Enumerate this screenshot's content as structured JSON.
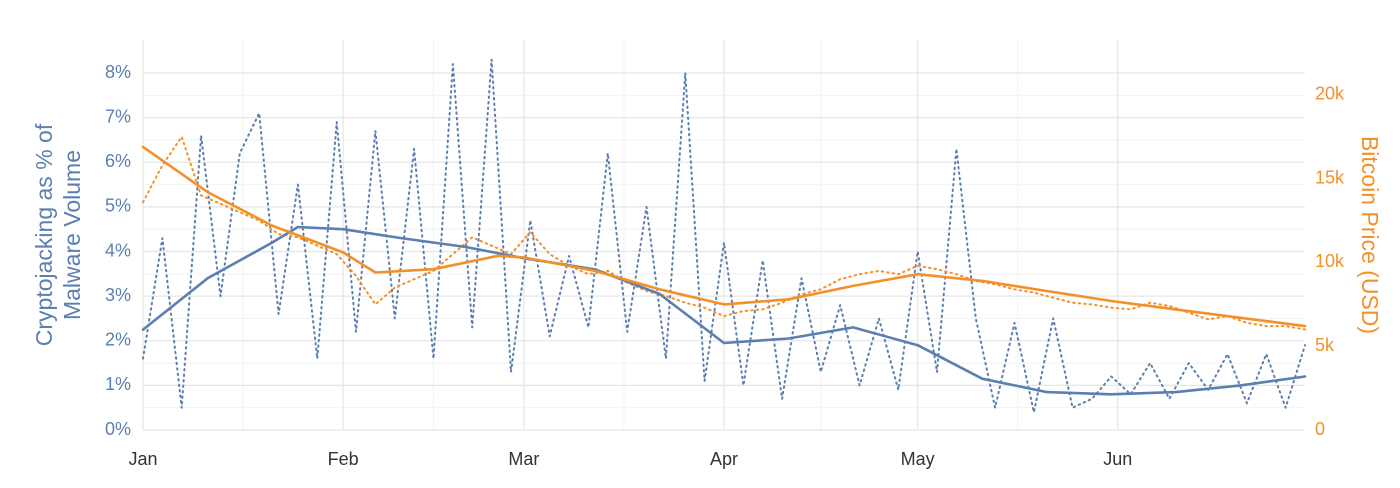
{
  "chart_data": {
    "type": "line",
    "ylabel": [
      "Cryptojacking as % of",
      "Malware Volume"
    ],
    "y2label": "Bitcoin Price (USD)",
    "xlim": [
      0,
      180
    ],
    "xticks": [
      {
        "value": 0,
        "label": "Jan"
      },
      {
        "value": 31,
        "label": "Feb"
      },
      {
        "value": 59,
        "label": "Mar"
      },
      {
        "value": 90,
        "label": "Apr"
      },
      {
        "value": 120,
        "label": "May"
      },
      {
        "value": 151,
        "label": "Jun"
      }
    ],
    "ylim": [
      0,
      8.74
    ],
    "yticks": [
      {
        "value": 0,
        "label": "0%"
      },
      {
        "value": 1,
        "label": "1%"
      },
      {
        "value": 2,
        "label": "2%"
      },
      {
        "value": 3,
        "label": "3%"
      },
      {
        "value": 4,
        "label": "4%"
      },
      {
        "value": 5,
        "label": "5%"
      },
      {
        "value": 6,
        "label": "6%"
      },
      {
        "value": 7,
        "label": "7%"
      },
      {
        "value": 8,
        "label": "8%"
      }
    ],
    "y2lim": [
      0,
      23280
    ],
    "y2ticks": [
      0,
      {
        "value": 5000,
        "label": "5k"
      },
      {
        "value": 10000,
        "label": "10k"
      },
      {
        "value": 15000,
        "label": "15k"
      },
      {
        "value": 20000,
        "label": "20k"
      }
    ],
    "ycolor": "#5b7fb0",
    "y2color": "#f4902a",
    "grid": true,
    "series": [
      {
        "color": "#5b7fb0",
        "style": "dotted",
        "x": [
          0,
          3,
          6,
          9,
          12,
          15,
          18,
          21,
          24,
          27,
          30,
          33,
          36,
          39,
          42,
          45,
          48,
          51,
          54,
          57,
          60,
          63,
          66,
          69,
          72,
          75,
          78,
          81,
          84,
          87,
          90,
          93,
          96,
          99,
          102,
          105,
          108,
          111,
          114,
          117,
          120,
          123,
          126,
          129,
          132,
          135,
          138,
          141,
          144,
          147,
          150,
          153,
          156,
          159,
          162,
          165,
          168,
          171,
          174,
          177,
          180
        ],
        "values": [
          1.6,
          4.3,
          0.5,
          6.6,
          3.0,
          6.2,
          7.1,
          2.6,
          5.5,
          1.6,
          6.9,
          2.2,
          6.7,
          2.5,
          6.3,
          1.6,
          8.2,
          2.3,
          8.3,
          1.3,
          4.7,
          2.1,
          3.9,
          2.3,
          6.2,
          2.2,
          5.0,
          1.6,
          8.0,
          1.1,
          4.2,
          1.0,
          3.8,
          0.7,
          3.4,
          1.3,
          2.8,
          1.0,
          2.5,
          0.9,
          4.0,
          1.3,
          6.3,
          2.5,
          0.5,
          2.4,
          0.4,
          2.5,
          0.5,
          0.7,
          1.2,
          0.8,
          1.5,
          0.7,
          1.5,
          0.9,
          1.7,
          0.6,
          1.7,
          0.5,
          1.9
        ]
      },
      {
        "color": "#f4902a",
        "style": "dotted",
        "x": [
          0,
          3,
          6,
          9,
          12,
          15,
          18,
          21,
          24,
          27,
          30,
          33,
          36,
          39,
          42,
          45,
          48,
          51,
          54,
          57,
          60,
          63,
          66,
          69,
          72,
          75,
          78,
          81,
          84,
          87,
          90,
          93,
          96,
          99,
          102,
          105,
          108,
          111,
          114,
          117,
          120,
          123,
          126,
          129,
          132,
          135,
          138,
          141,
          144,
          147,
          150,
          153,
          156,
          159,
          162,
          165,
          168,
          171,
          174,
          177,
          180
        ],
        "values": [
          13600,
          15800,
          17500,
          14000,
          13500,
          13000,
          12500,
          11700,
          11500,
          11000,
          10500,
          9200,
          7500,
          8500,
          9000,
          9500,
          10500,
          11500,
          11000,
          10500,
          11800,
          10500,
          9800,
          9300,
          9500,
          8800,
          8300,
          8000,
          7600,
          7300,
          6800,
          7100,
          7200,
          7600,
          8100,
          8400,
          9000,
          9300,
          9500,
          9300,
          9800,
          9600,
          9300,
          8900,
          8700,
          8400,
          8200,
          7900,
          7600,
          7500,
          7300,
          7200,
          7600,
          7400,
          7000,
          6600,
          6800,
          6400,
          6200,
          6200,
          6000
        ]
      },
      {
        "color": "#5b7fb0",
        "style": "solid",
        "x": [
          0,
          10,
          20,
          24,
          31,
          40,
          50,
          59,
          70,
          80,
          90,
          100,
          110,
          120,
          130,
          140,
          150,
          160,
          170,
          180
        ],
        "values": [
          2.25,
          3.4,
          4.2,
          4.55,
          4.5,
          4.3,
          4.1,
          3.85,
          3.6,
          3.05,
          1.95,
          2.05,
          2.3,
          1.9,
          1.15,
          0.85,
          0.8,
          0.85,
          1.0,
          1.2
        ]
      },
      {
        "color": "#f4902a",
        "style": "solid",
        "x": [
          0,
          10,
          20,
          31,
          36,
          45,
          55,
          59,
          70,
          80,
          90,
          100,
          110,
          120,
          130,
          140,
          150,
          160,
          170,
          180
        ],
        "values": [
          16900,
          14200,
          12200,
          10600,
          9400,
          9600,
          10400,
          10300,
          9500,
          8400,
          7500,
          7800,
          8600,
          9300,
          8900,
          8300,
          7700,
          7200,
          6700,
          6200
        ]
      }
    ]
  }
}
